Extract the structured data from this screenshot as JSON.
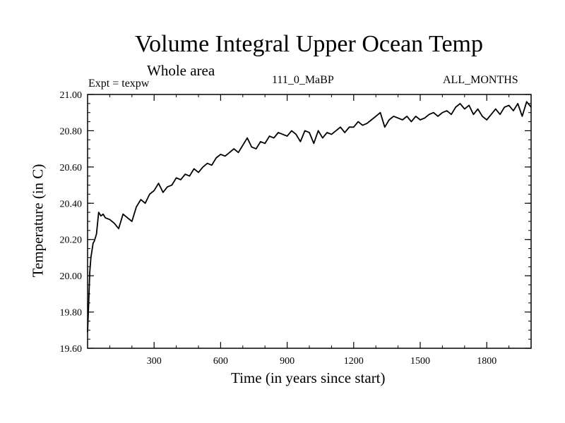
{
  "chart_data": {
    "type": "line",
    "title": "Volume Integral Upper Ocean Temp",
    "subtitle": "Whole area",
    "annotations": {
      "experiment": "Expt = texpw",
      "run": "111_0_MaBP",
      "months": "ALL_MONTHS"
    },
    "xlabel": "Time (in years since start)",
    "ylabel": "Temperature (in C)",
    "xlim": [
      0,
      2000
    ],
    "ylim": [
      19.6,
      21.0
    ],
    "xticks": [
      300,
      600,
      900,
      1200,
      1500,
      1800
    ],
    "xtick_labels": [
      "300",
      "600",
      "900",
      "1200",
      "1500",
      "1800"
    ],
    "yticks": [
      19.6,
      19.8,
      20.0,
      20.2,
      20.4,
      20.6,
      20.8,
      21.0
    ],
    "ytick_labels": [
      "19.60",
      "19.80",
      "20.00",
      "20.20",
      "20.40",
      "20.60",
      "20.80",
      "21.00"
    ],
    "grid": false,
    "series": [
      {
        "name": "temperature",
        "color": "#000000",
        "x": [
          0,
          5,
          10,
          15,
          20,
          25,
          30,
          40,
          50,
          60,
          70,
          80,
          100,
          120,
          140,
          150,
          160,
          180,
          200,
          220,
          240,
          260,
          280,
          300,
          320,
          340,
          360,
          380,
          400,
          420,
          440,
          460,
          480,
          500,
          520,
          540,
          560,
          580,
          600,
          620,
          640,
          660,
          680,
          700,
          720,
          740,
          760,
          780,
          800,
          820,
          840,
          860,
          880,
          900,
          920,
          940,
          960,
          980,
          1000,
          1020,
          1040,
          1060,
          1080,
          1100,
          1120,
          1140,
          1160,
          1180,
          1200,
          1220,
          1240,
          1260,
          1280,
          1300,
          1320,
          1340,
          1360,
          1380,
          1400,
          1420,
          1440,
          1460,
          1480,
          1500,
          1520,
          1540,
          1560,
          1580,
          1600,
          1620,
          1640,
          1660,
          1680,
          1700,
          1720,
          1740,
          1760,
          1780,
          1800,
          1820,
          1840,
          1860,
          1880,
          1900,
          1920,
          1940,
          1960,
          1980,
          2000
        ],
        "values": [
          19.69,
          19.85,
          20.02,
          20.1,
          20.14,
          20.18,
          20.19,
          20.23,
          20.35,
          20.33,
          20.34,
          20.32,
          20.31,
          20.29,
          20.26,
          20.3,
          20.34,
          20.32,
          20.3,
          20.38,
          20.42,
          20.4,
          20.45,
          20.47,
          20.51,
          20.46,
          20.49,
          20.5,
          20.54,
          20.53,
          20.56,
          20.55,
          20.59,
          20.57,
          20.6,
          20.62,
          20.61,
          20.65,
          20.67,
          20.66,
          20.68,
          20.7,
          20.68,
          20.72,
          20.76,
          20.71,
          20.7,
          20.74,
          20.73,
          20.77,
          20.76,
          20.79,
          20.78,
          20.77,
          20.8,
          20.78,
          20.74,
          20.8,
          20.79,
          20.73,
          20.8,
          20.76,
          20.79,
          20.78,
          20.8,
          20.82,
          20.79,
          20.82,
          20.82,
          20.85,
          20.83,
          20.84,
          20.86,
          20.88,
          20.9,
          20.82,
          20.86,
          20.88,
          20.87,
          20.86,
          20.88,
          20.85,
          20.88,
          20.86,
          20.87,
          20.89,
          20.9,
          20.88,
          20.9,
          20.91,
          20.89,
          20.93,
          20.95,
          20.92,
          20.94,
          20.89,
          20.92,
          20.88,
          20.86,
          20.89,
          20.92,
          20.89,
          20.93,
          20.94,
          20.91,
          20.95,
          20.88,
          20.96,
          20.93
        ]
      }
    ]
  }
}
